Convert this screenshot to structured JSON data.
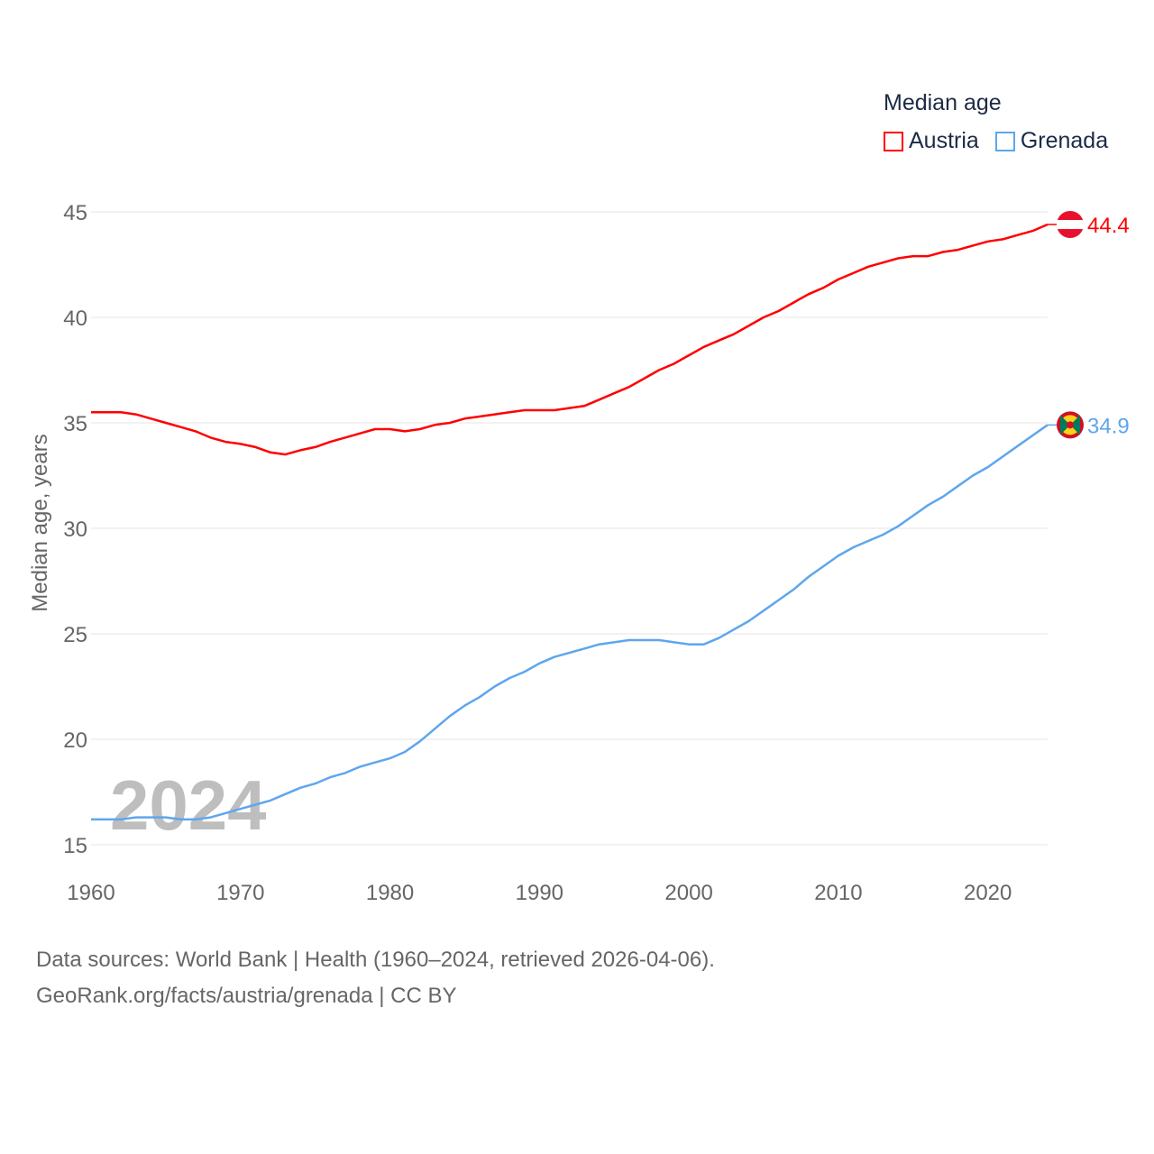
{
  "chart_data": {
    "type": "line",
    "title": "Median age",
    "xlabel": "",
    "ylabel": "Median age, years",
    "xlim": [
      1960,
      2024
    ],
    "ylim": [
      15,
      45
    ],
    "x_ticks": [
      1960,
      1970,
      1980,
      1990,
      2000,
      2010,
      2020
    ],
    "y_ticks": [
      15,
      20,
      25,
      30,
      35,
      40,
      45
    ],
    "grid": true,
    "legend_position": "top-right",
    "year_watermark": "2024",
    "x": [
      1960,
      1961,
      1962,
      1963,
      1964,
      1965,
      1966,
      1967,
      1968,
      1969,
      1970,
      1971,
      1972,
      1973,
      1974,
      1975,
      1976,
      1977,
      1978,
      1979,
      1980,
      1981,
      1982,
      1983,
      1984,
      1985,
      1986,
      1987,
      1988,
      1989,
      1990,
      1991,
      1992,
      1993,
      1994,
      1995,
      1996,
      1997,
      1998,
      1999,
      2000,
      2001,
      2002,
      2003,
      2004,
      2005,
      2006,
      2007,
      2008,
      2009,
      2010,
      2011,
      2012,
      2013,
      2014,
      2015,
      2016,
      2017,
      2018,
      2019,
      2020,
      2021,
      2022,
      2023,
      2024
    ],
    "series": [
      {
        "name": "Austria",
        "color": "#ff0000",
        "end_label": "44.4",
        "values": [
          35.5,
          35.5,
          35.5,
          35.4,
          35.2,
          35.0,
          34.8,
          34.6,
          34.3,
          34.1,
          34.0,
          33.85,
          33.6,
          33.5,
          33.7,
          33.85,
          34.1,
          34.3,
          34.5,
          34.7,
          34.7,
          34.6,
          34.7,
          34.9,
          35.0,
          35.2,
          35.3,
          35.4,
          35.5,
          35.6,
          35.6,
          35.6,
          35.7,
          35.8,
          36.1,
          36.4,
          36.7,
          37.1,
          37.5,
          37.8,
          38.2,
          38.6,
          38.9,
          39.2,
          39.6,
          40.0,
          40.3,
          40.7,
          41.1,
          41.4,
          41.8,
          42.1,
          42.4,
          42.6,
          42.8,
          42.9,
          42.9,
          43.1,
          43.2,
          43.4,
          43.6,
          43.7,
          43.9,
          44.1,
          44.4
        ]
      },
      {
        "name": "Grenada",
        "color": "#5ea6ee",
        "end_label": "34.9",
        "values": [
          16.2,
          16.2,
          16.2,
          16.3,
          16.3,
          16.3,
          16.2,
          16.2,
          16.3,
          16.5,
          16.7,
          16.9,
          17.1,
          17.4,
          17.7,
          17.9,
          18.2,
          18.4,
          18.7,
          18.9,
          19.1,
          19.4,
          19.9,
          20.5,
          21.1,
          21.6,
          22.0,
          22.5,
          22.9,
          23.2,
          23.6,
          23.9,
          24.1,
          24.3,
          24.5,
          24.6,
          24.7,
          24.7,
          24.7,
          24.6,
          24.5,
          24.5,
          24.8,
          25.2,
          25.6,
          26.1,
          26.6,
          27.1,
          27.7,
          28.2,
          28.7,
          29.1,
          29.4,
          29.7,
          30.1,
          30.6,
          31.1,
          31.5,
          32.0,
          32.5,
          32.9,
          33.4,
          33.9,
          34.4,
          34.9
        ]
      }
    ]
  },
  "source": {
    "line1": "Data sources: World Bank | Health (1960–2024, retrieved 2026-04-06).",
    "line2": "GeoRank.org/facts/austria/grenada | CC BY"
  }
}
